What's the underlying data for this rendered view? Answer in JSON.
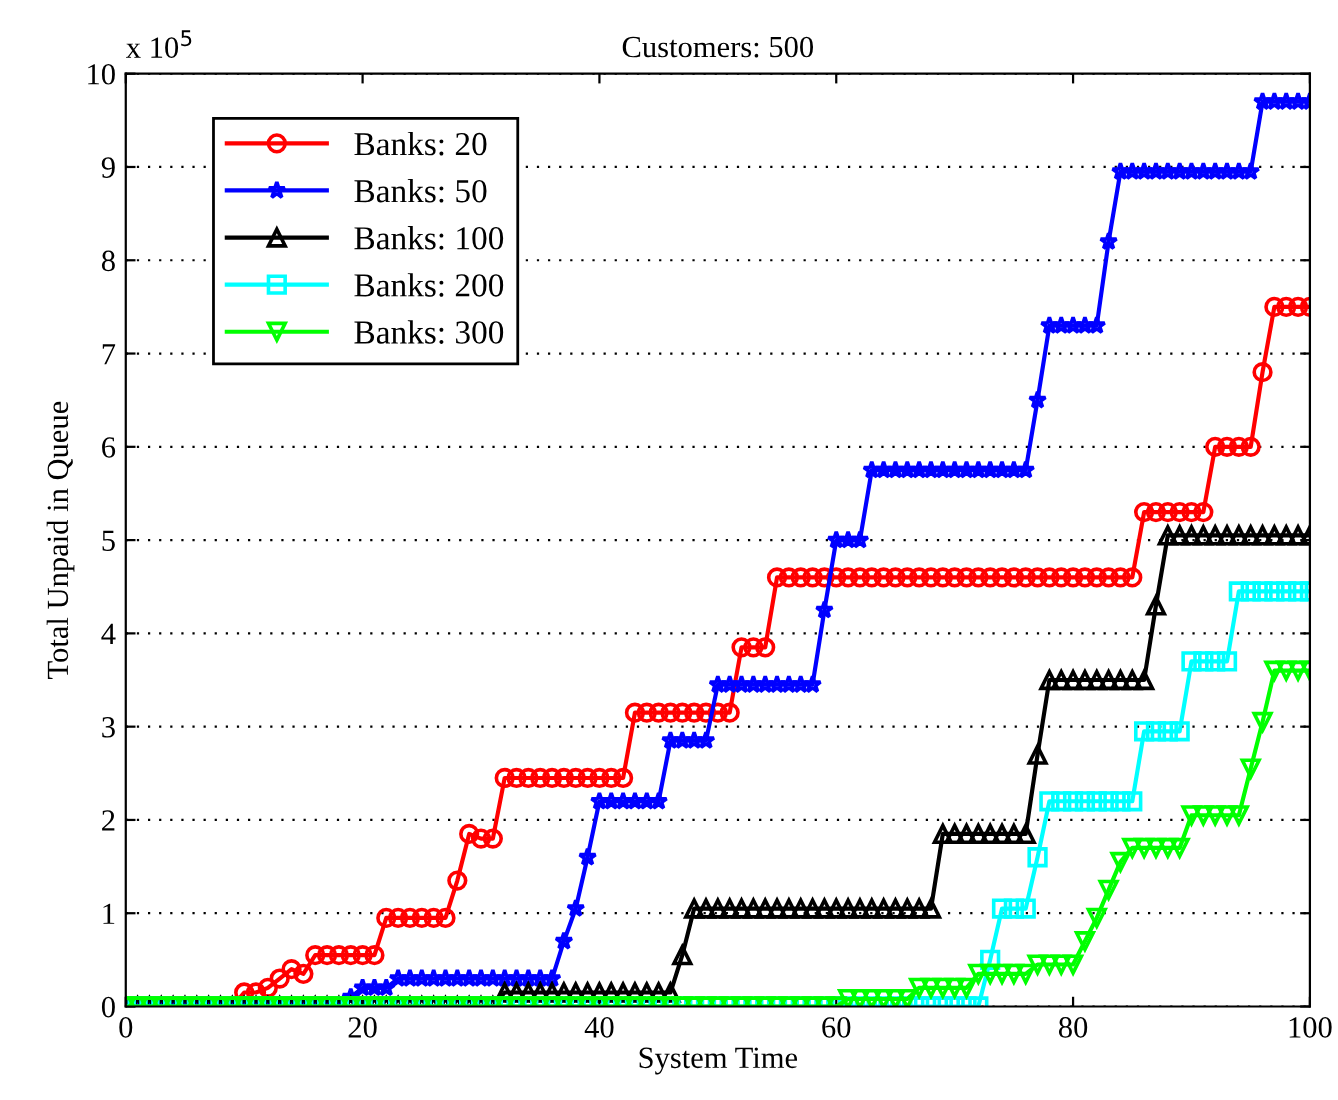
{
  "chart_data": {
    "type": "line",
    "title": "Customers: 500",
    "xlabel": "System Time",
    "ylabel": "Total Unpaid in Queue",
    "annotations": [
      "x 10$^{5}$"
    ],
    "x": [
      0,
      1,
      2,
      3,
      4,
      5,
      6,
      7,
      8,
      9,
      10,
      11,
      12,
      13,
      14,
      15,
      16,
      17,
      18,
      19,
      20,
      21,
      22,
      23,
      24,
      25,
      26,
      27,
      28,
      29,
      30,
      31,
      32,
      33,
      34,
      35,
      36,
      37,
      38,
      39,
      40,
      41,
      42,
      43,
      44,
      45,
      46,
      47,
      48,
      49,
      50,
      51,
      52,
      53,
      54,
      55,
      56,
      57,
      58,
      59,
      60,
      61,
      62,
      63,
      64,
      65,
      66,
      67,
      68,
      69,
      70,
      71,
      72,
      73,
      74,
      75,
      76,
      77,
      78,
      79,
      80,
      81,
      82,
      83,
      84,
      85,
      86,
      87,
      88,
      89,
      90,
      91,
      92,
      93,
      94,
      95,
      96,
      97,
      98,
      99,
      100
    ],
    "xlim": [
      0,
      100
    ],
    "xticks": [
      0,
      20,
      40,
      60,
      80,
      100
    ],
    "ylim": [
      0,
      10
    ],
    "yticks": [
      0,
      1,
      2,
      3,
      4,
      5,
      6,
      7,
      8,
      9,
      10
    ],
    "grid": "y",
    "legend": "top left",
    "line_style": "solid",
    "series": [
      {
        "name": "Banks: 20",
        "color": "#ff0000",
        "marker": "circle",
        "values": [
          null,
          null,
          null,
          null,
          null,
          null,
          null,
          null,
          0,
          0,
          0.15,
          0.15,
          0.2,
          0.3,
          0.4,
          0.35,
          0.55,
          0.55,
          0.55,
          0.55,
          0.55,
          0.55,
          0.95,
          0.95,
          0.95,
          0.95,
          0.95,
          0.95,
          1.35,
          1.85,
          1.8,
          1.8,
          2.45,
          2.45,
          2.45,
          2.45,
          2.45,
          2.45,
          2.45,
          2.45,
          2.45,
          2.45,
          2.45,
          3.15,
          3.15,
          3.15,
          3.15,
          3.15,
          3.15,
          3.15,
          3.15,
          3.15,
          3.85,
          3.85,
          3.85,
          4.6,
          4.6,
          4.6,
          4.6,
          4.6,
          4.6,
          4.6,
          4.6,
          4.6,
          4.6,
          4.6,
          4.6,
          4.6,
          4.6,
          4.6,
          4.6,
          4.6,
          4.6,
          4.6,
          4.6,
          4.6,
          4.6,
          4.6,
          4.6,
          4.6,
          4.6,
          4.6,
          4.6,
          4.6,
          4.6,
          4.6,
          5.3,
          5.3,
          5.3,
          5.3,
          5.3,
          5.3,
          6.0,
          6.0,
          6.0,
          6.0,
          6.8,
          7.5,
          7.5,
          7.5,
          7.5
        ]
      },
      {
        "name": "Banks: 50",
        "color": "#0000ff",
        "marker": "star",
        "values": [
          0,
          0,
          0,
          0,
          0,
          0,
          0,
          0,
          0,
          0,
          0,
          0,
          0,
          0,
          0,
          0,
          0,
          0,
          0,
          0.1,
          0.2,
          0.2,
          0.2,
          0.3,
          0.3,
          0.3,
          0.3,
          0.3,
          0.3,
          0.3,
          0.3,
          0.3,
          0.3,
          0.3,
          0.3,
          0.3,
          0.3,
          0.7,
          1.05,
          1.6,
          2.2,
          2.2,
          2.2,
          2.2,
          2.2,
          2.2,
          2.85,
          2.85,
          2.85,
          2.85,
          3.45,
          3.45,
          3.45,
          3.45,
          3.45,
          3.45,
          3.45,
          3.45,
          3.45,
          4.25,
          5.0,
          5.0,
          5.0,
          5.75,
          5.75,
          5.75,
          5.75,
          5.75,
          5.75,
          5.75,
          5.75,
          5.75,
          5.75,
          5.75,
          5.75,
          5.75,
          5.75,
          6.5,
          7.3,
          7.3,
          7.3,
          7.3,
          7.3,
          8.2,
          8.95,
          8.95,
          8.95,
          8.95,
          8.95,
          8.95,
          8.95,
          8.95,
          8.95,
          8.95,
          8.95,
          8.95,
          9.7,
          9.7,
          9.7,
          9.7,
          9.7
        ]
      },
      {
        "name": "Banks: 100",
        "color": "#000000",
        "marker": "triangle",
        "values": [
          0,
          0,
          0,
          0,
          0,
          0,
          0,
          0,
          0,
          0,
          0,
          0,
          0,
          0,
          0,
          0,
          0,
          0,
          0,
          0,
          0,
          0,
          0,
          0,
          0,
          0,
          0,
          0,
          0,
          0,
          0,
          0,
          0.15,
          0.15,
          0.15,
          0.15,
          0.15,
          0.15,
          0.15,
          0.15,
          0.15,
          0.15,
          0.15,
          0.15,
          0.15,
          0.15,
          0.15,
          0.55,
          1.05,
          1.05,
          1.05,
          1.05,
          1.05,
          1.05,
          1.05,
          1.05,
          1.05,
          1.05,
          1.05,
          1.05,
          1.05,
          1.05,
          1.05,
          1.05,
          1.05,
          1.05,
          1.05,
          1.05,
          1.05,
          1.85,
          1.85,
          1.85,
          1.85,
          1.85,
          1.85,
          1.85,
          1.85,
          2.7,
          3.5,
          3.5,
          3.5,
          3.5,
          3.5,
          3.5,
          3.5,
          3.5,
          3.5,
          4.3,
          5.05,
          5.05,
          5.05,
          5.05,
          5.05,
          5.05,
          5.05,
          5.05,
          5.05,
          5.05,
          5.05,
          5.05,
          5.05
        ]
      },
      {
        "name": "Banks: 200",
        "color": "#00ffff",
        "marker": "square",
        "values": [
          0,
          0,
          0,
          0,
          0,
          0,
          0,
          0,
          0,
          0,
          0,
          0,
          0,
          0,
          0,
          0,
          0,
          0,
          0,
          0,
          0,
          0,
          0,
          0,
          0,
          0,
          0,
          0,
          0,
          0,
          0,
          0,
          0,
          0,
          0,
          0,
          0,
          0,
          0,
          0,
          0,
          0,
          0,
          0,
          0,
          0,
          0,
          0,
          0,
          0,
          0,
          0,
          0,
          0,
          0,
          0,
          0,
          0,
          0,
          0,
          0,
          0,
          0,
          0,
          0,
          0,
          0,
          0,
          0,
          0,
          0,
          0,
          0,
          0.5,
          1.05,
          1.05,
          1.05,
          1.6,
          2.2,
          2.2,
          2.2,
          2.2,
          2.2,
          2.2,
          2.2,
          2.2,
          2.95,
          2.95,
          2.95,
          2.95,
          3.7,
          3.7,
          3.7,
          3.7,
          4.45,
          4.45,
          4.45,
          4.45,
          4.45,
          4.45,
          4.45
        ]
      },
      {
        "name": "Banks: 300",
        "color": "#00ff00",
        "marker": "triangle_down",
        "values": [
          0,
          0,
          0,
          0,
          0,
          0,
          0,
          0,
          0,
          0,
          0,
          0,
          0,
          0,
          0,
          0,
          0,
          0,
          0,
          0,
          0,
          0,
          0,
          0,
          0,
          0,
          0,
          0,
          0,
          0,
          0,
          0,
          0,
          0,
          0,
          0,
          0,
          0,
          0,
          0,
          0,
          0,
          0,
          0,
          0,
          0,
          0,
          0,
          0,
          0,
          0,
          0,
          0,
          0,
          0,
          0,
          0,
          0,
          0,
          0,
          0,
          0.08,
          0.08,
          0.08,
          0.08,
          0.08,
          0.08,
          0.2,
          0.2,
          0.2,
          0.2,
          0.2,
          0.35,
          0.35,
          0.35,
          0.35,
          0.35,
          0.45,
          0.45,
          0.45,
          0.45,
          0.7,
          0.95,
          1.25,
          1.55,
          1.7,
          1.7,
          1.7,
          1.7,
          1.7,
          2.05,
          2.05,
          2.05,
          2.05,
          2.05,
          2.55,
          3.05,
          3.6,
          3.6,
          3.6,
          3.6
        ]
      }
    ]
  }
}
